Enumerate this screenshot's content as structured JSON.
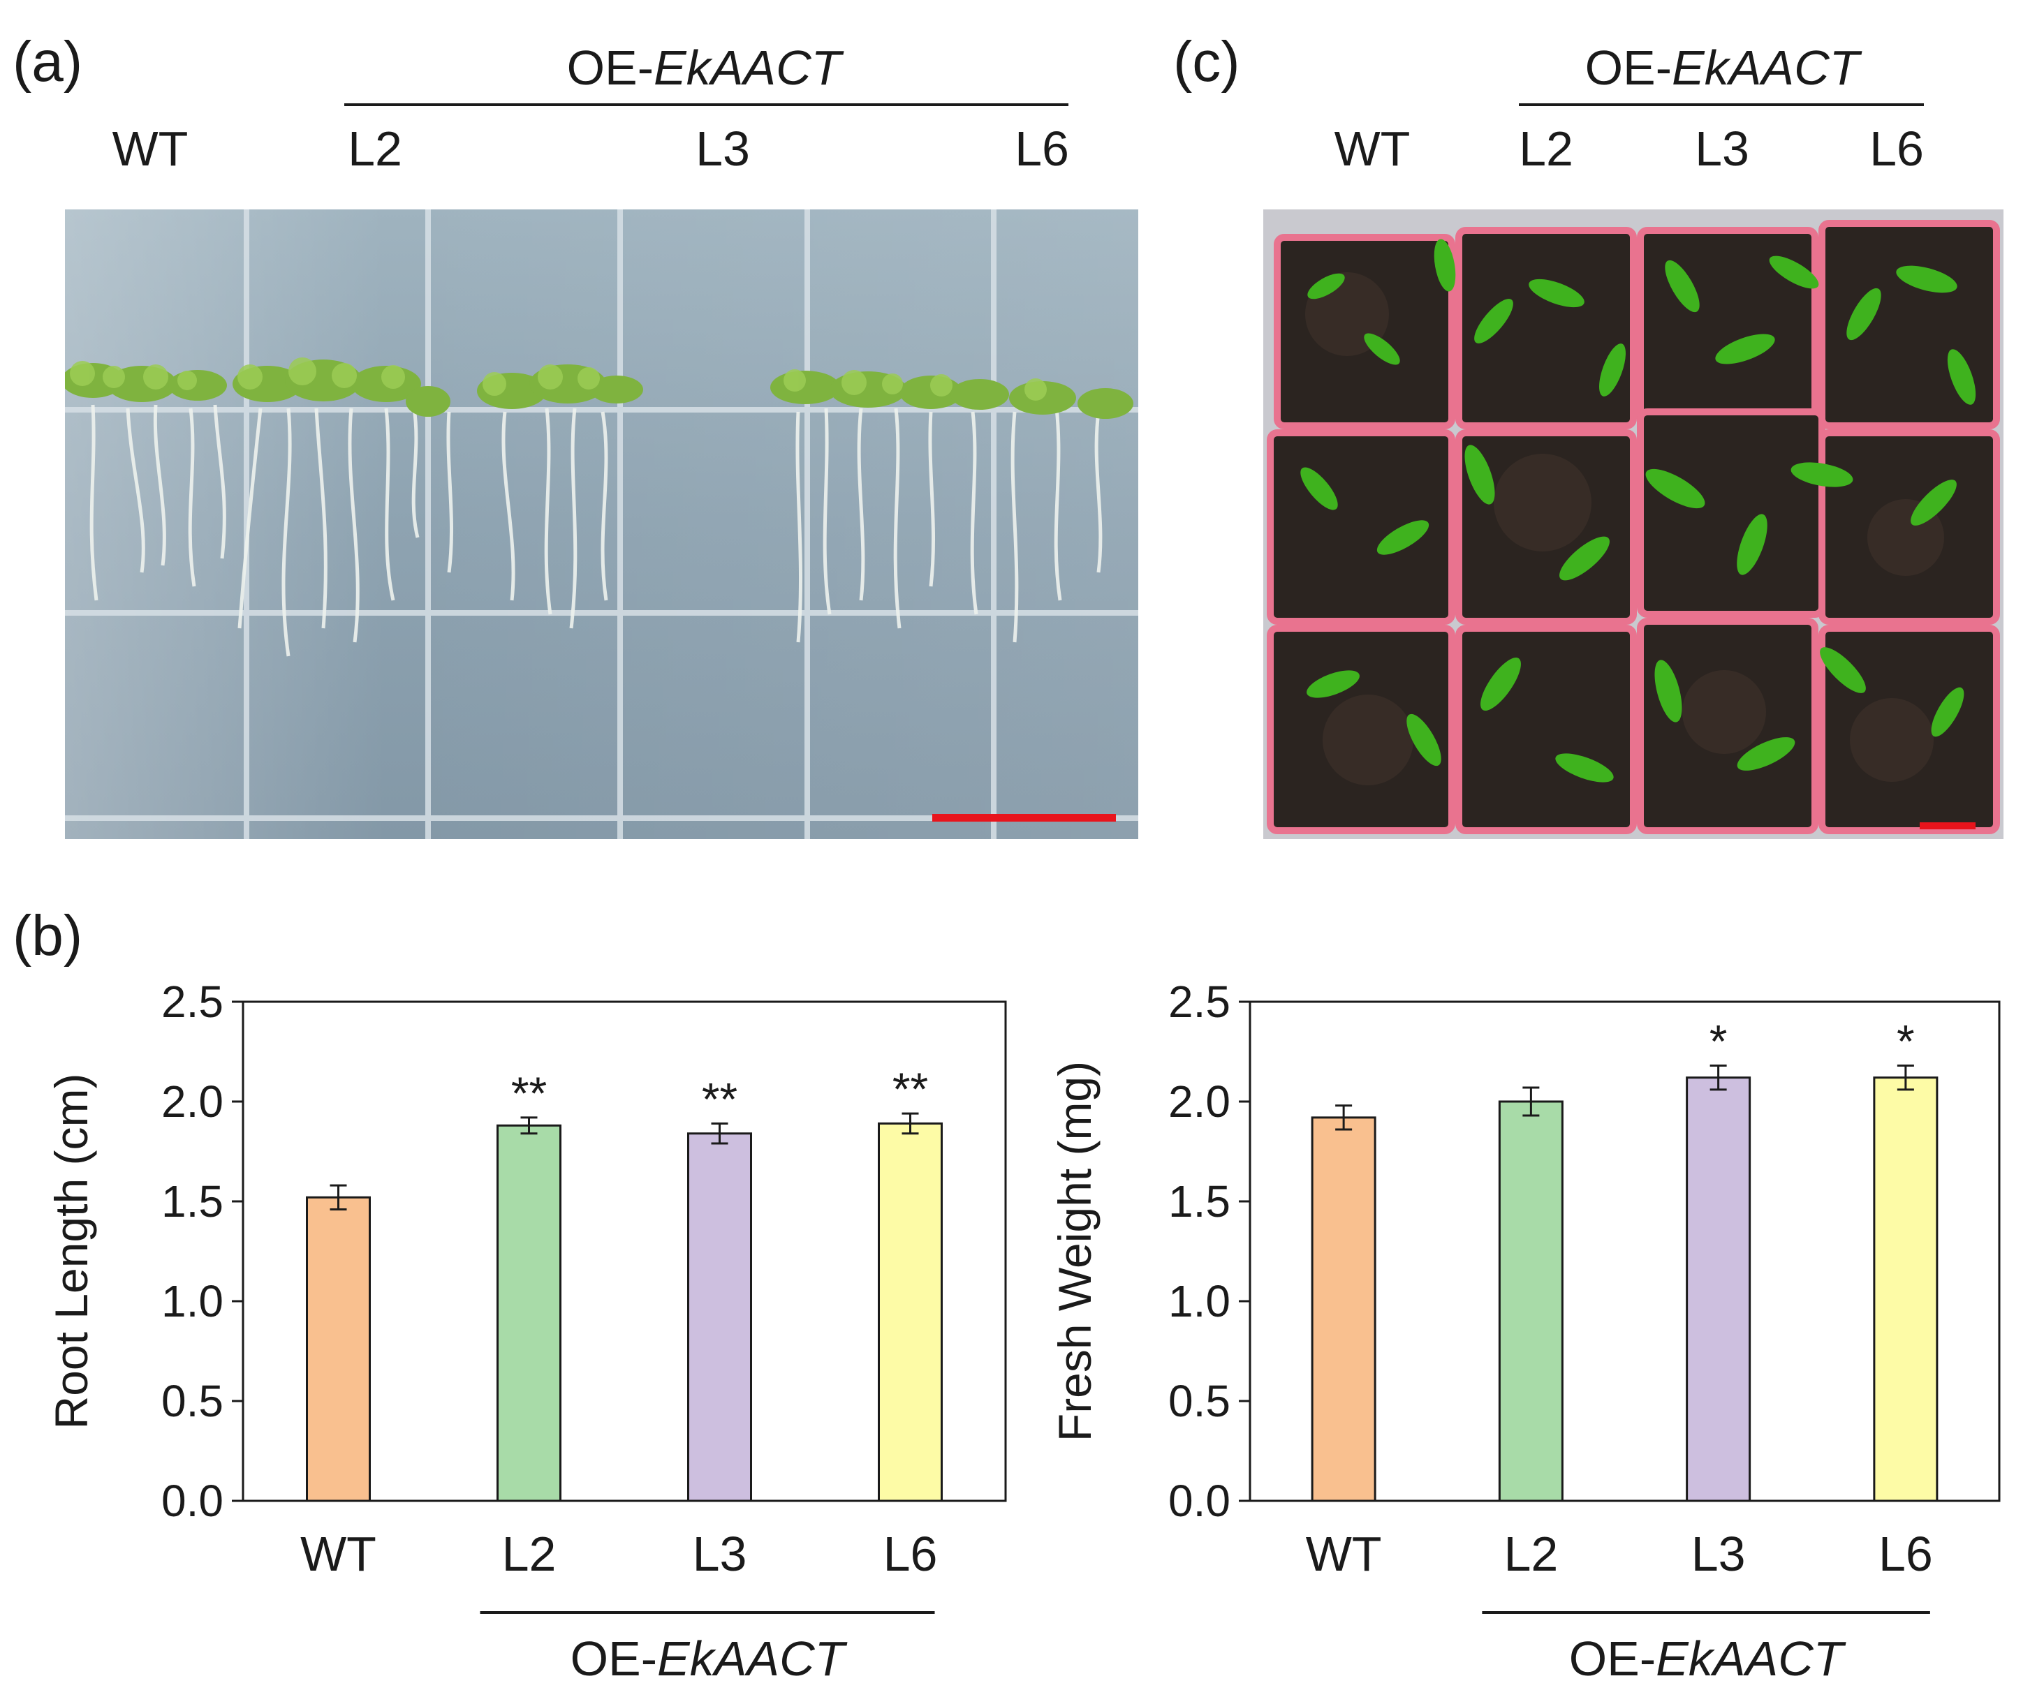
{
  "panels": {
    "a": {
      "label": "(a)",
      "group_label_prefix": "OE-",
      "group_label_gene": "EkAACT",
      "wt_label": "WT",
      "line_labels": [
        "L2",
        "L3",
        "L6"
      ]
    },
    "c": {
      "label": "(c)",
      "group_label_prefix": "OE-",
      "group_label_gene": "EkAACT",
      "wt_label": "WT",
      "line_labels": [
        "L2",
        "L3",
        "L6"
      ]
    },
    "b": {
      "label": "(b)"
    }
  },
  "colors": {
    "wt": "#f9c08f",
    "l2": "#a8dba8",
    "l3": "#cdbfdf",
    "l6": "#fdfba6",
    "scale_bar": "#e8141c",
    "axis": "#1a1a1a"
  },
  "chart_data": [
    {
      "type": "bar",
      "name": "root-length-chart",
      "categories": [
        "WT",
        "L2",
        "L3",
        "L6"
      ],
      "values": [
        1.52,
        1.88,
        1.84,
        1.89
      ],
      "errors": [
        0.06,
        0.04,
        0.05,
        0.05
      ],
      "significance": [
        "",
        "**",
        "**",
        "**"
      ],
      "ylabel": "Root Length (cm)",
      "xlabel": "",
      "ylim": [
        0,
        2.5
      ],
      "yticks": [
        "0.0",
        "0.5",
        "1.0",
        "1.5",
        "2.0",
        "2.5"
      ],
      "group_label_prefix": "OE-",
      "group_label_gene": "EkAACT",
      "grid": false
    },
    {
      "type": "bar",
      "name": "fresh-weight-chart",
      "categories": [
        "WT",
        "L2",
        "L3",
        "L6"
      ],
      "values": [
        1.92,
        2.0,
        2.12,
        2.12
      ],
      "errors": [
        0.06,
        0.07,
        0.06,
        0.06
      ],
      "significance": [
        "",
        "",
        "*",
        "*"
      ],
      "ylabel": "Fresh Weight (mg)",
      "xlabel": "",
      "ylim": [
        0,
        2.5
      ],
      "yticks": [
        "0.0",
        "0.5",
        "1.0",
        "1.5",
        "2.0",
        "2.5"
      ],
      "group_label_prefix": "OE-",
      "group_label_gene": "EkAACT",
      "grid": false
    }
  ]
}
